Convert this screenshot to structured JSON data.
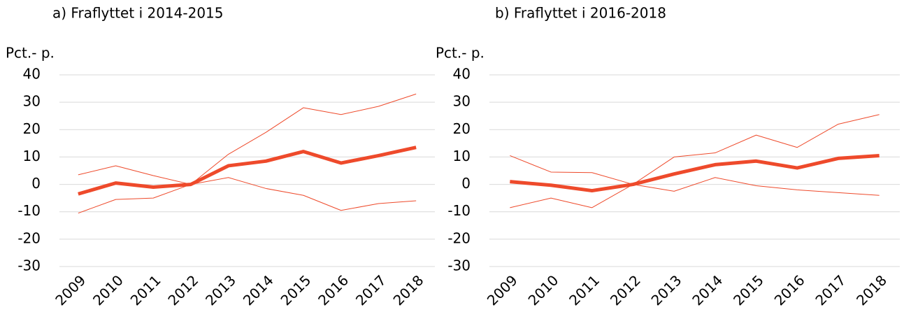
{
  "chart_data": [
    {
      "type": "line",
      "subtitle": "a)  Fraflyttet i 2014-2015",
      "ylabel": "Pct.- p.",
      "categories": [
        "2009",
        "2010",
        "2011",
        "2012",
        "2013",
        "2014",
        "2015",
        "2016",
        "2017",
        "2018"
      ],
      "series": [
        {
          "color": "#ee4a2b",
          "values": [
            3.5,
            6.8,
            3.2,
            0,
            11,
            19,
            28,
            25.5,
            28.5,
            33
          ]
        },
        {
          "color": "#ee4a2b",
          "values": [
            -10.5,
            -5.5,
            -5,
            0,
            2.5,
            -1.5,
            -4,
            -9.5,
            -7,
            -6
          ]
        },
        {
          "color": "#ee4a2b",
          "values": [
            -3.5,
            0.5,
            -1,
            0,
            6.8,
            8.5,
            12,
            7.8,
            10.5,
            13.5
          ]
        }
      ],
      "ylim": [
        -30,
        40
      ],
      "yticks": [
        -30,
        -20,
        -10,
        0,
        10,
        20,
        30,
        40
      ],
      "grid": true
    },
    {
      "type": "line",
      "subtitle": "b)  Fraflyttet i 2016-2018",
      "ylabel": "Pct.- p.",
      "categories": [
        "2009",
        "2010",
        "2011",
        "2012",
        "2013",
        "2014",
        "2015",
        "2016",
        "2017",
        "2018"
      ],
      "series": [
        {
          "color": "#ee4a2b",
          "values": [
            10.5,
            4.5,
            4.3,
            0,
            10,
            11.5,
            18,
            13.5,
            22,
            25.5
          ]
        },
        {
          "color": "#ee4a2b",
          "values": [
            -8.5,
            -5,
            -8.5,
            0,
            -2.5,
            2.5,
            -0.5,
            -2,
            -3,
            -4
          ]
        },
        {
          "color": "#ee4a2b",
          "values": [
            1,
            -0.3,
            -2.3,
            0,
            3.8,
            7.2,
            8.5,
            6,
            9.5,
            10.5
          ]
        }
      ],
      "ylim": [
        -30,
        40
      ],
      "yticks": [
        -30,
        -20,
        -10,
        0,
        10,
        20,
        30,
        40
      ],
      "grid": true
    }
  ]
}
